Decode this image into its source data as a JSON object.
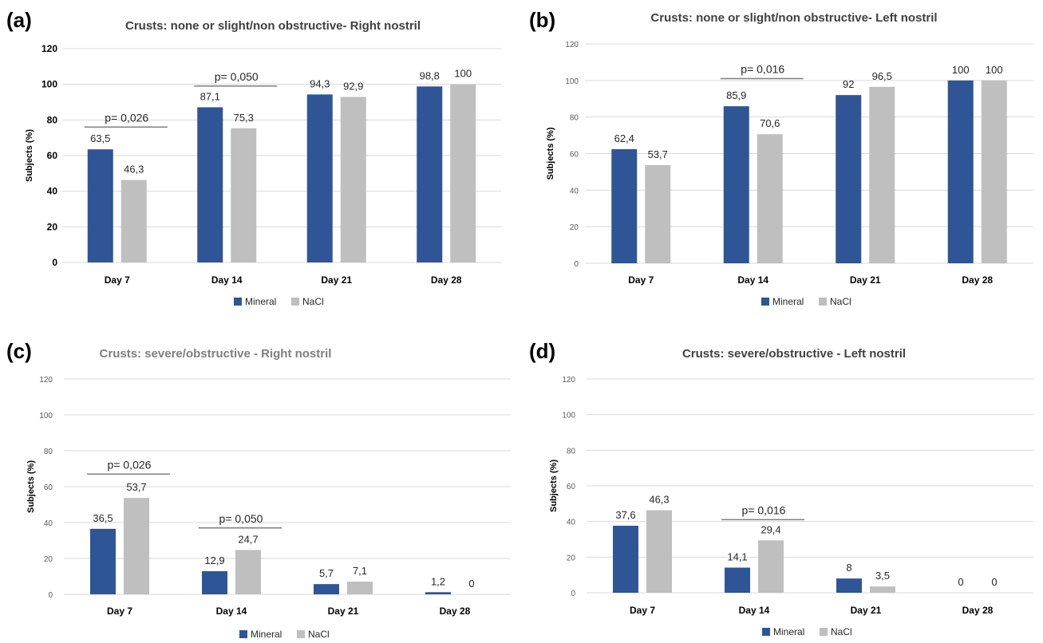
{
  "colors": {
    "mineral": "#2f5597",
    "nacl": "#bfbfbf",
    "grid": "#d9d9d9",
    "sig": "#7f7f7f"
  },
  "chart_data": [
    {
      "panel": "(a)",
      "type": "bar",
      "title": "Crusts: none or slight/non obstructive- Right nostril",
      "ylabel": "Subjects (%)",
      "categories": [
        "Day 7",
        "Day 14",
        "Day 21",
        "Day 28"
      ],
      "yticks": [
        "0",
        "20",
        "40",
        "60",
        "80",
        "100",
        "120"
      ],
      "ylim": [
        0,
        120
      ],
      "grid": true,
      "legend_position": "bottom",
      "series": [
        {
          "name": "Mineral",
          "values": [
            63.5,
            87.1,
            94.3,
            98.8
          ],
          "labels": [
            "63,5",
            "87,1",
            "94,3",
            "98,8"
          ]
        },
        {
          "name": "NaCl",
          "values": [
            46.3,
            75.3,
            92.9,
            100
          ],
          "labels": [
            "46,3",
            "75,3",
            "92,9",
            "100"
          ]
        }
      ],
      "annotations": [
        {
          "category": "Day 7",
          "text": "p= 0,026",
          "line_at": 76
        },
        {
          "category": "Day 14",
          "text": "p= 0,050",
          "line_at": 99
        }
      ]
    },
    {
      "panel": "(b)",
      "type": "bar",
      "title": "Crusts: none or slight/non obstructive- Left nostril",
      "ylabel": "Subjects (%)",
      "categories": [
        "Day 7",
        "Day 14",
        "Day 21",
        "Day 28"
      ],
      "yticks": [
        "0",
        "20",
        "40",
        "60",
        "80",
        "100",
        "120"
      ],
      "ylim": [
        0,
        120
      ],
      "grid": true,
      "legend_position": "bottom",
      "series": [
        {
          "name": "Mineral",
          "values": [
            62.4,
            85.9,
            92,
            100
          ],
          "labels": [
            "62,4",
            "85,9",
            "92",
            "100"
          ]
        },
        {
          "name": "NaCl",
          "values": [
            53.7,
            70.6,
            96.5,
            100
          ],
          "labels": [
            "53,7",
            "70,6",
            "96,5",
            "100"
          ]
        }
      ],
      "annotations": [
        {
          "category": "Day 14",
          "text": "p= 0,016",
          "line_at": 101
        }
      ]
    },
    {
      "panel": "(c)",
      "type": "bar",
      "title": "Crusts: severe/obstructive - Right nostril",
      "ylabel": "Subjects (%)",
      "categories": [
        "Day 7",
        "Day 14",
        "Day 21",
        "Day 28"
      ],
      "yticks": [
        "0",
        "20",
        "40",
        "60",
        "80",
        "100",
        "120"
      ],
      "ylim": [
        0,
        120
      ],
      "grid": true,
      "legend_position": "bottom",
      "series": [
        {
          "name": "Mineral",
          "values": [
            36.5,
            12.9,
            5.7,
            1.2
          ],
          "labels": [
            "36,5",
            "12,9",
            "5,7",
            "1,2"
          ]
        },
        {
          "name": "NaCl",
          "values": [
            53.7,
            24.7,
            7.1,
            0
          ],
          "labels": [
            "53,7",
            "24,7",
            "7,1",
            "0"
          ]
        }
      ],
      "annotations": [
        {
          "category": "Day 7",
          "text": "p= 0,026",
          "line_at": 67
        },
        {
          "category": "Day 14",
          "text": "p= 0,050",
          "line_at": 37
        }
      ]
    },
    {
      "panel": "(d)",
      "type": "bar",
      "title": "Crusts: severe/obstructive - Left nostril",
      "ylabel": "Subjects (%)",
      "categories": [
        "Day 7",
        "Day 14",
        "Day 21",
        "Day 28"
      ],
      "yticks": [
        "0",
        "20",
        "40",
        "60",
        "80",
        "100",
        "120"
      ],
      "ylim": [
        0,
        120
      ],
      "grid": true,
      "legend_position": "bottom",
      "series": [
        {
          "name": "Mineral",
          "values": [
            37.6,
            14.1,
            8,
            0
          ],
          "labels": [
            "37,6",
            "14,1",
            "8",
            "0"
          ]
        },
        {
          "name": "NaCl",
          "values": [
            46.3,
            29.4,
            3.5,
            0
          ],
          "labels": [
            "46,3",
            "29,4",
            "3,5",
            "0"
          ]
        }
      ],
      "annotations": [
        {
          "category": "Day 14",
          "text": "p= 0,016",
          "line_at": 41
        }
      ]
    }
  ]
}
